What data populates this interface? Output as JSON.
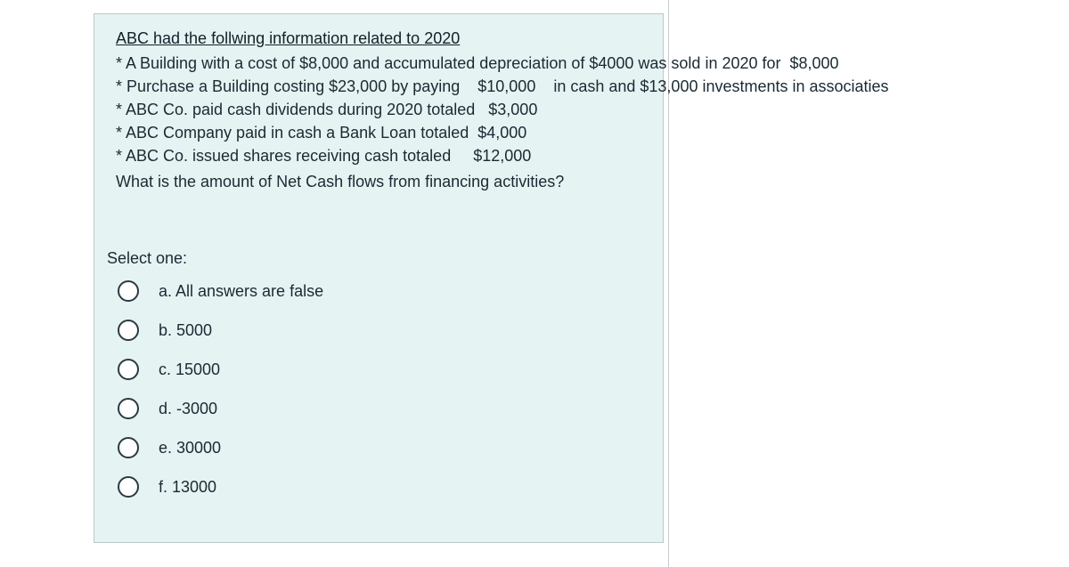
{
  "question": {
    "heading": "ABC had the follwing information related to 2020",
    "lines": [
      "* A Building with a cost of $8,000 and accumulated depreciation of $4000 was sold in 2020 for  $8,000",
      "* Purchase a Building costing $23,000 by paying    $10,000    in cash and $13,000 investments in associaties",
      "* ABC Co. paid cash dividends during 2020 totaled   $3,000",
      "* ABC Company paid in cash a Bank Loan totaled  $4,000",
      "* ABC Co. issued shares receiving cash totaled     $12,000"
    ],
    "prompt": "What is the amount of Net Cash flows from financing activities?"
  },
  "select_one_label": "Select one:",
  "options": [
    {
      "label": "a. All answers are false"
    },
    {
      "label": "b. 5000"
    },
    {
      "label": "c. 15000"
    },
    {
      "label": "d. -3000"
    },
    {
      "label": "e. 30000"
    },
    {
      "label": "f. 13000"
    }
  ]
}
